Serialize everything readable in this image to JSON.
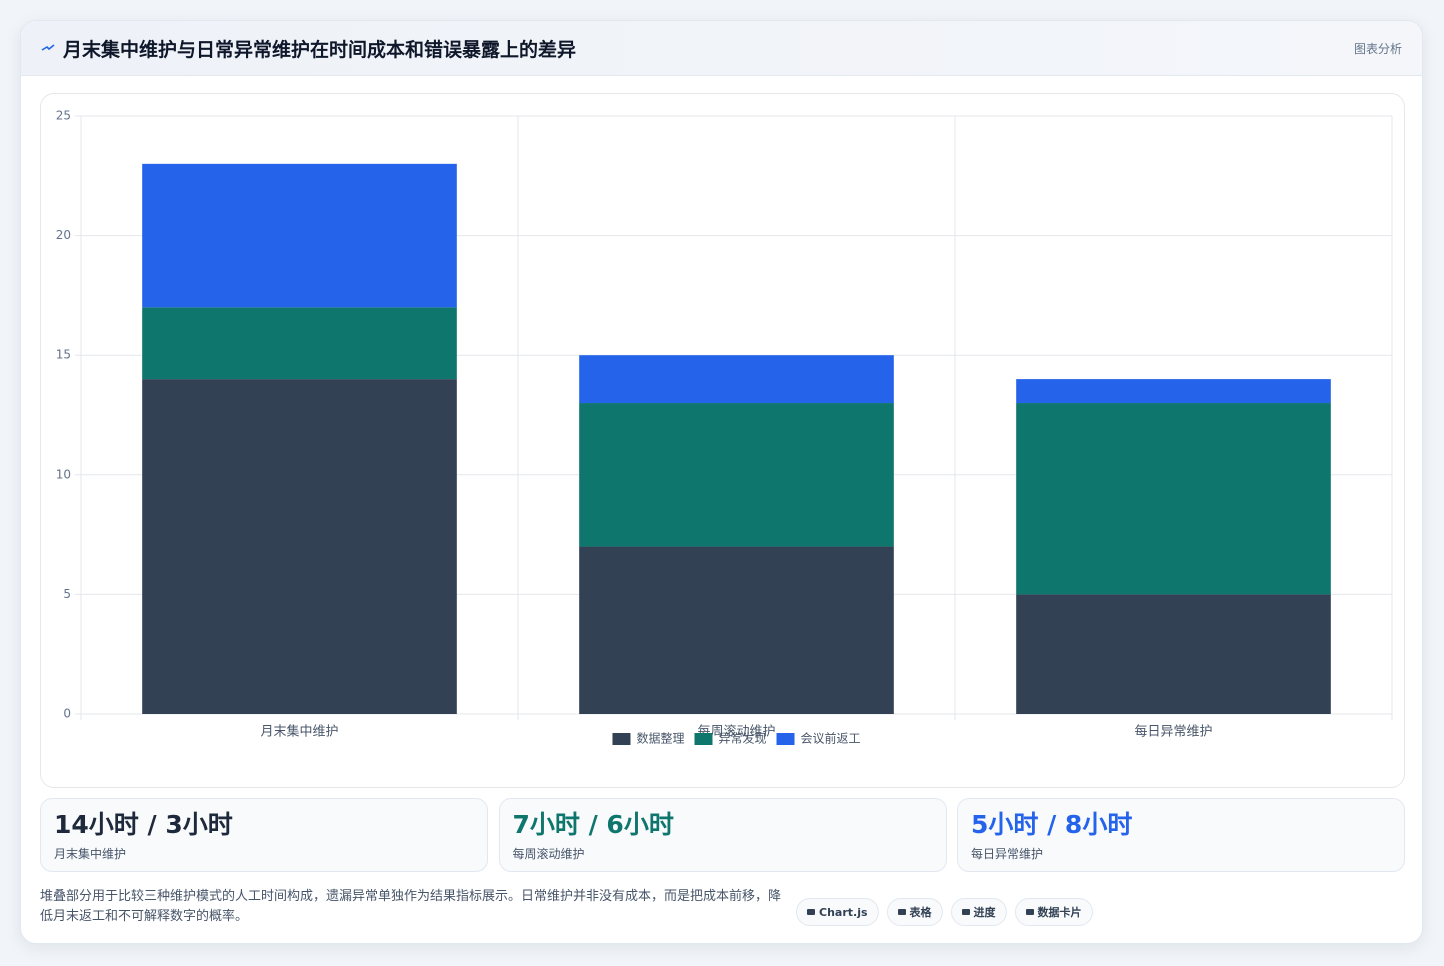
{
  "header": {
    "title": "月末集中维护与日常异常维护在时间成本和错误暴露上的差异",
    "tag": "图表分析"
  },
  "chart_data": {
    "type": "bar",
    "stacked": true,
    "categories": [
      "月末集中维护",
      "每周滚动维护",
      "每日异常维护"
    ],
    "series": [
      {
        "name": "数据整理",
        "color": "#334155",
        "values": [
          14,
          7,
          5
        ]
      },
      {
        "name": "异常发现",
        "color": "#0f766e",
        "values": [
          3,
          6,
          8
        ]
      },
      {
        "name": "会议前返工",
        "color": "#2563eb",
        "values": [
          6,
          2,
          1
        ]
      }
    ],
    "ylim": [
      0,
      25
    ],
    "yticks": [
      0,
      5,
      10,
      15,
      20,
      25
    ],
    "grid": true,
    "legend": "bottom"
  },
  "cards": [
    {
      "value": "14小时 / 3小时",
      "label": "月末集中维护",
      "color": "#1e293b"
    },
    {
      "value": "7小时 / 6小时",
      "label": "每周滚动维护",
      "color": "#0f766e"
    },
    {
      "value": "5小时 / 8小时",
      "label": "每日异常维护",
      "color": "#2563eb"
    }
  ],
  "footer": {
    "note": "堆叠部分用于比较三种维护模式的人工时间构成，遗漏异常单独作为结果指标展示。日常维护并非没有成本，而是把成本前移，降低月末返工和不可解释数字的概率。",
    "chips": [
      "Chart.js",
      "表格",
      "进度",
      "数据卡片"
    ]
  }
}
